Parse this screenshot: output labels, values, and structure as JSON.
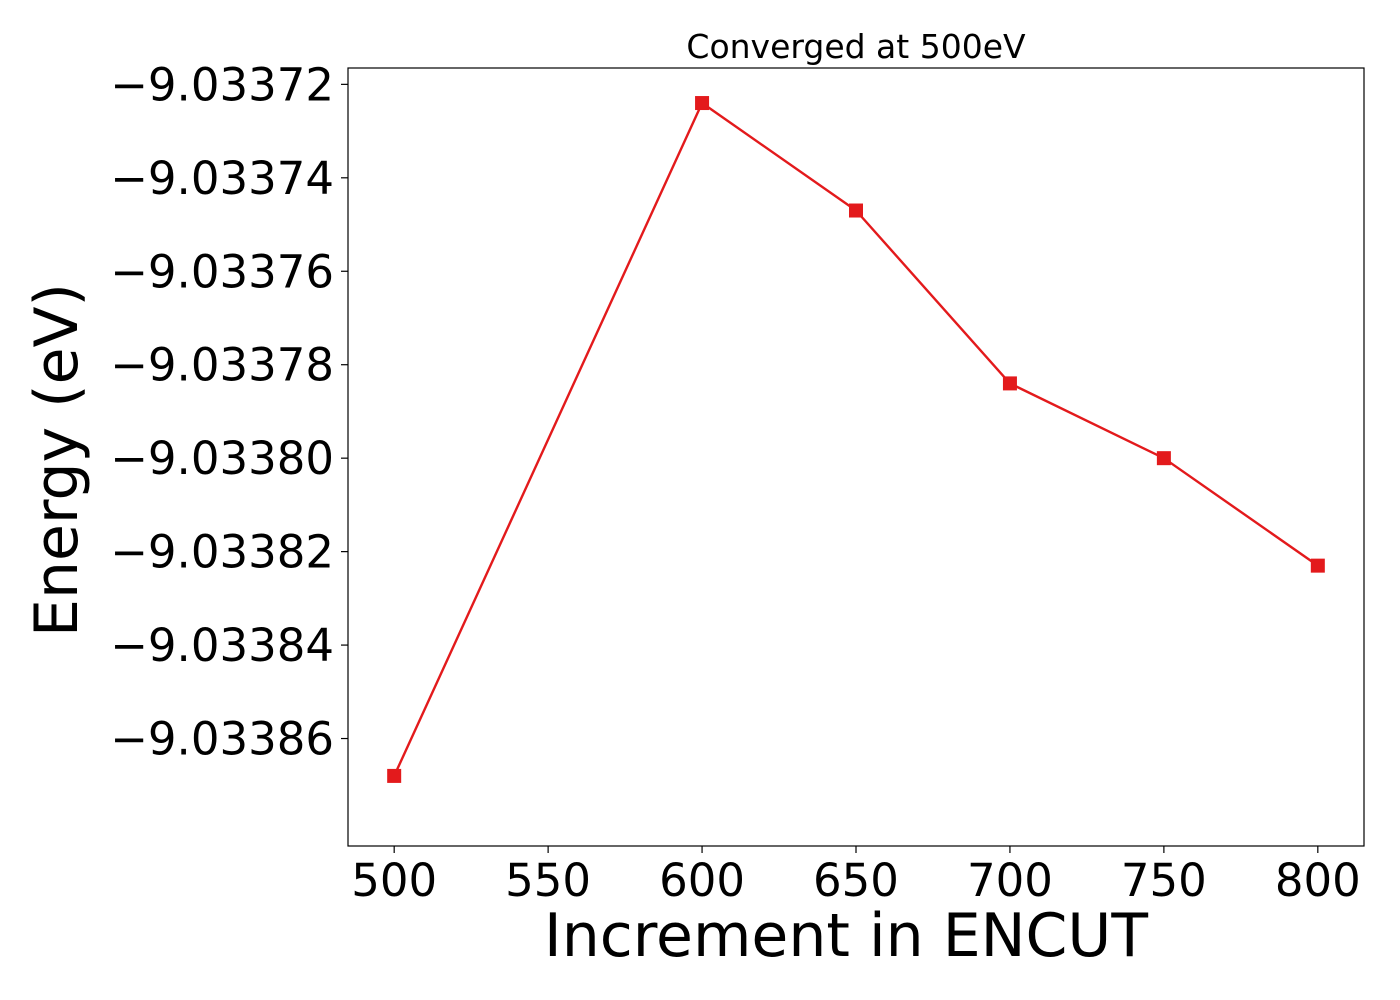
{
  "chart_data": {
    "type": "line",
    "title": "Converged at 500eV",
    "xlabel": "Increment in ENCUT",
    "ylabel": "Energy (eV)",
    "x": [
      500,
      600,
      650,
      700,
      750,
      800
    ],
    "series": [
      {
        "values": [
          -9.033868,
          -9.033724,
          -9.033747,
          -9.033784,
          -9.0338,
          -9.033823
        ],
        "color": "#e31a1c",
        "marker": "square"
      }
    ],
    "xticks": [
      500,
      550,
      600,
      650,
      700,
      750,
      800
    ],
    "xtick_labels": [
      "500",
      "550",
      "600",
      "650",
      "700",
      "750",
      "800"
    ],
    "yticks": [
      -9.03372,
      -9.03374,
      -9.03376,
      -9.03378,
      -9.0338,
      -9.03382,
      -9.03384,
      -9.03386
    ],
    "ytick_labels": [
      "−9.03372",
      "−9.03374",
      "−9.03376",
      "−9.03378",
      "−9.03380",
      "−9.03382",
      "−9.03384",
      "−9.03386"
    ],
    "xlim": [
      485,
      815
    ],
    "ylim": [
      -9.033883,
      -9.0337165
    ],
    "grid": false,
    "legend": "none"
  }
}
